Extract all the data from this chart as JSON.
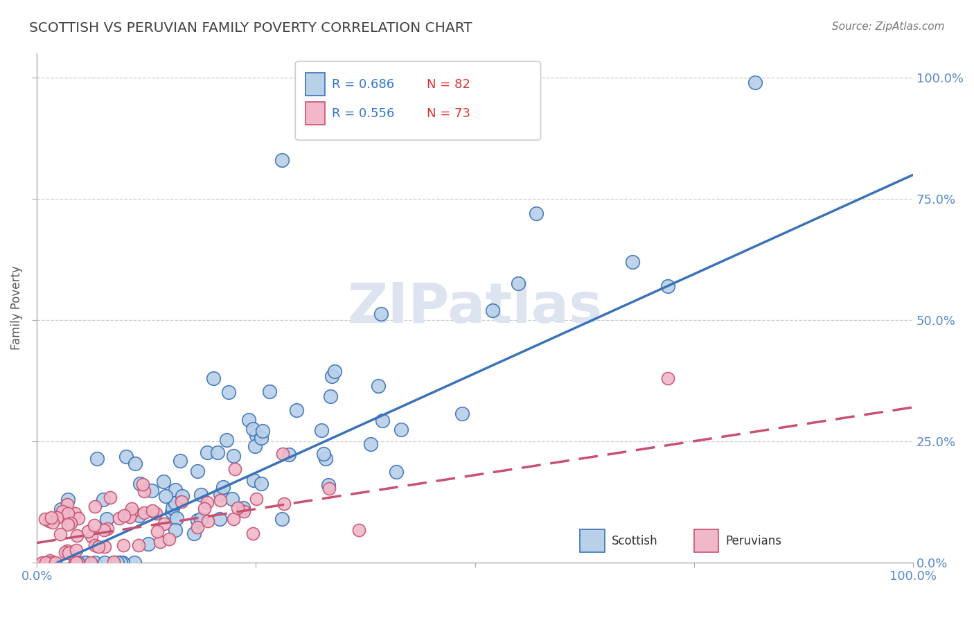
{
  "title": "SCOTTISH VS PERUVIAN FAMILY POVERTY CORRELATION CHART",
  "source": "Source: ZipAtlas.com",
  "ylabel": "Family Poverty",
  "xlim": [
    0.0,
    1.0
  ],
  "ylim": [
    0.0,
    1.05
  ],
  "xtick_positions": [
    0.0,
    0.25,
    0.5,
    0.75,
    1.0
  ],
  "xtick_labels": [
    "0.0%",
    "",
    "",
    "",
    "100.0%"
  ],
  "ytick_positions": [
    0.0,
    0.25,
    0.5,
    0.75,
    1.0
  ],
  "ytick_labels": [
    "0.0%",
    "25.0%",
    "50.0%",
    "75.0%",
    "100.0%"
  ],
  "blue_R": 0.686,
  "blue_N": 82,
  "pink_R": 0.556,
  "pink_N": 73,
  "blue_face_color": "#b8d0e8",
  "blue_edge_color": "#3a72b8",
  "blue_line_color": "#3a72b8",
  "pink_face_color": "#f0b8c8",
  "pink_edge_color": "#c85070",
  "pink_line_color": "#c85070",
  "grid_color": "#cccccc",
  "title_color": "#444444",
  "tick_color": "#5588cc",
  "legend_r_color": "#3377cc",
  "legend_n_color": "#dd3333",
  "watermark_color": "#dde4ef",
  "blue_slope": 0.82,
  "blue_intercept": -0.02,
  "pink_slope": 0.28,
  "pink_intercept": 0.04
}
